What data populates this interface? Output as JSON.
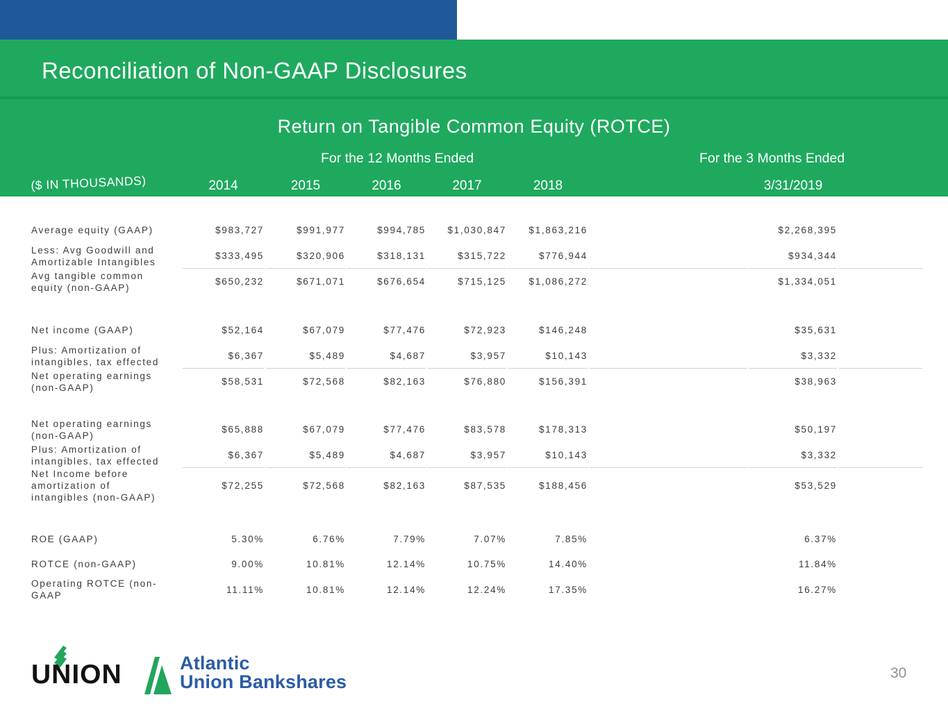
{
  "slide": {
    "title": "Reconciliation of Non-GAAP Disclosures",
    "page_number": "30"
  },
  "colors": {
    "header_green": "#1fa95f",
    "divider_green": "#139b55",
    "top_bar_blue": "#20599a",
    "logo_text_blue": "#2b5ba6",
    "logo_green": "#22a55c",
    "underline_gray": "#d2d2d2",
    "body_text": "#3b3b3b",
    "page_number_gray": "#8f8f8f"
  },
  "table": {
    "subtitle": "Return on Tangible Common Equity (ROTCE)",
    "group_headers": [
      "For the 12 Months Ended",
      "For the 3 Months Ended"
    ],
    "units_label": "($ IN THOUSANDS)",
    "columns": [
      "2014",
      "2015",
      "2016",
      "2017",
      "2018",
      "3/31/2019"
    ],
    "sections": [
      {
        "rows": [
          {
            "label": "Average equity (GAAP)",
            "values": [
              "$983,727",
              "$991,977",
              "$994,785",
              "$1,030,847",
              "$1,863,216",
              "$2,268,395"
            ],
            "underline": false
          },
          {
            "label": "Less: Avg Goodwill and\nAmortizable Intangibles",
            "values": [
              "$333,495",
              "$320,906",
              "$318,131",
              "$315,722",
              "$776,944",
              "$934,344"
            ],
            "underline": true
          },
          {
            "label": "Avg tangible common\nequity (non-GAAP)",
            "values": [
              "$650,232",
              "$671,071",
              "$676,654",
              "$715,125",
              "$1,086,272",
              "$1,334,051"
            ],
            "underline": false
          }
        ]
      },
      {
        "rows": [
          {
            "label": "Net income (GAAP)",
            "values": [
              "$52,164",
              "$67,079",
              "$77,476",
              "$72,923",
              "$146,248",
              "$35,631"
            ],
            "underline": false
          },
          {
            "label": "Plus: Amortization of\nintangibles, tax effected",
            "values": [
              "$6,367",
              "$5,489",
              "$4,687",
              "$3,957",
              "$10,143",
              "$3,332"
            ],
            "underline": true
          },
          {
            "label": "Net operating earnings\n(non-GAAP)",
            "values": [
              "$58,531",
              "$72,568",
              "$82,163",
              "$76,880",
              "$156,391",
              "$38,963"
            ],
            "underline": false
          }
        ]
      },
      {
        "rows": [
          {
            "label": "Net operating earnings\n(non-GAAP)",
            "values": [
              "$65,888",
              "$67,079",
              "$77,476",
              "$83,578",
              "$178,313",
              "$50,197"
            ],
            "underline": false
          },
          {
            "label": "Plus: Amortization of\nintangibles, tax effected",
            "values": [
              "$6,367",
              "$5,489",
              "$4,687",
              "$3,957",
              "$10,143",
              "$3,332"
            ],
            "underline": true
          },
          {
            "label": "Net Income before\namortization of\nintangibles (non-GAAP)",
            "values": [
              "$72,255",
              "$72,568",
              "$82,163",
              "$87,535",
              "$188,456",
              "$53,529"
            ],
            "underline": false
          }
        ]
      },
      {
        "rows": [
          {
            "label": "ROE (GAAP)",
            "values": [
              "5.30%",
              "6.76%",
              "7.79%",
              "7.07%",
              "7.85%",
              "6.37%"
            ],
            "underline": false
          },
          {
            "label": "ROTCE (non-GAAP)",
            "values": [
              "9.00%",
              "10.81%",
              "12.14%",
              "10.75%",
              "14.40%",
              "11.84%"
            ],
            "underline": false
          },
          {
            "label": "Operating ROTCE (non-\nGAAP",
            "values": [
              "11.11%",
              "10.81%",
              "12.14%",
              "12.24%",
              "17.35%",
              "16.27%"
            ],
            "underline": false
          }
        ]
      }
    ]
  },
  "footer": {
    "union_logo_text": "UNION",
    "brand_name_line1": "Atlantic",
    "brand_name_line2": "Union Bankshares",
    "page_number": "30"
  }
}
